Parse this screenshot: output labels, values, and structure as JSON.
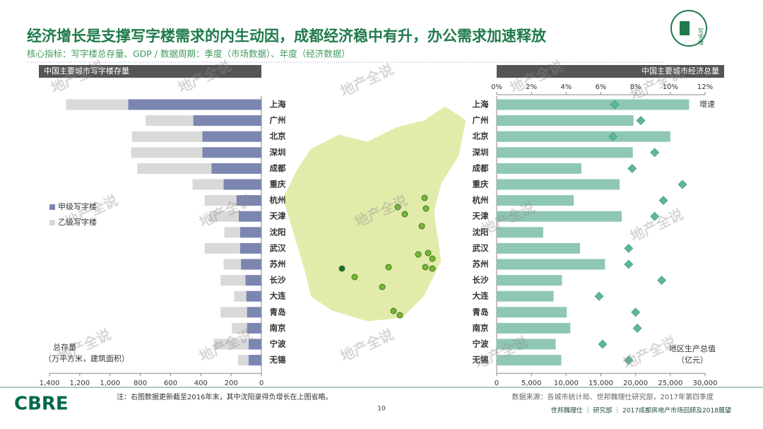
{
  "header": {
    "title": "经济增长是支撑写字楼需求的内生动因，成都经济稳中有升，办公需求加速释放",
    "subtitle": "核心指标：写字楼总存量、GDP / 数据周期：季度（市场数据）、年度（经济数据）",
    "icon_label": "写字楼"
  },
  "chart_data": [
    {
      "type": "bar",
      "orientation": "horizontal",
      "stacked": true,
      "title": "中国主要城市写字楼存量",
      "categories": [
        "上海",
        "广州",
        "北京",
        "深圳",
        "成都",
        "重庆",
        "杭州",
        "天津",
        "沈阳",
        "武汉",
        "苏州",
        "长沙",
        "大连",
        "青岛",
        "南京",
        "宁波",
        "无锡"
      ],
      "series": [
        {
          "name": "甲级写字楼",
          "color": "#7b86b1",
          "values": [
            880,
            450,
            390,
            390,
            330,
            250,
            165,
            150,
            140,
            140,
            135,
            105,
            100,
            95,
            95,
            85,
            85
          ]
        },
        {
          "name": "乙级写字楼",
          "color": "#d9d9d9",
          "values": [
            410,
            315,
            465,
            470,
            490,
            205,
            210,
            195,
            105,
            235,
            115,
            165,
            80,
            175,
            100,
            230,
            70
          ]
        }
      ],
      "xlim": [
        1400,
        0
      ],
      "xticks": [
        {
          "value": 1400,
          "label": "1,400"
        },
        {
          "value": 1200,
          "label": "1,200"
        },
        {
          "value": 1000,
          "label": "1,000"
        },
        800,
        600,
        400,
        200,
        0
      ],
      "xlabel": [
        "总存量",
        "（万平方米，建筑面积）"
      ],
      "legend": "left"
    },
    {
      "type": "bar",
      "orientation": "horizontal",
      "title": "中国主要城市经济总量",
      "categories": [
        "上海",
        "广州",
        "北京",
        "深圳",
        "成都",
        "重庆",
        "杭州",
        "天津",
        "沈阳",
        "武汉",
        "苏州",
        "长沙",
        "大连",
        "青岛",
        "南京",
        "宁波",
        "无锡"
      ],
      "series": [
        {
          "color": "#8fc8b2",
          "values": [
            27700,
            19700,
            25000,
            19600,
            12200,
            17700,
            11100,
            18000,
            6700,
            12000,
            15600,
            9400,
            8200,
            10100,
            10600,
            8500,
            9300
          ]
        },
        {
          "name": "增速",
          "type": "scatter",
          "axis": "x2",
          "color": "#5cb896",
          "values": [
            6.8,
            8.3,
            6.7,
            9.1,
            7.8,
            10.7,
            9.6,
            9.1,
            null,
            7.6,
            7.6,
            9.5,
            5.9,
            8.0,
            8.1,
            6.1,
            7.6
          ]
        }
      ],
      "xlim": [
        0,
        30000
      ],
      "xticks": [
        0,
        {
          "value": 5000,
          "label": "5,000"
        },
        {
          "value": 10000,
          "label": "10,000"
        },
        {
          "value": 15000,
          "label": "15,000"
        },
        {
          "value": 20000,
          "label": "20,000"
        },
        {
          "value": 25000,
          "label": "25,000"
        },
        {
          "value": 30000,
          "label": "30,000"
        }
      ],
      "x2lim": [
        0,
        12
      ],
      "x2ticks": [
        {
          "value": 0,
          "label": "0%"
        },
        {
          "value": 2,
          "label": "2%"
        },
        {
          "value": 4,
          "label": "4%"
        },
        {
          "value": 6,
          "label": "6%"
        },
        {
          "value": 8,
          "label": "8%"
        },
        {
          "value": 10,
          "label": "10%"
        },
        {
          "value": 12,
          "label": "12%"
        }
      ],
      "xlabel": [
        "地区生产总值",
        "（亿元）"
      ],
      "legend": "top-right"
    }
  ],
  "footer": {
    "note": "注：右图数据更新截至2016年末，其中沈阳录得负增长在上图省略。",
    "source": "数据来源：各城市统计局、世邦魏理仕研究部，2017年第四季度",
    "page": "10",
    "logo": "CBRE",
    "credit": "世邦魏理仕 ｜ 研究部 ｜ 2017成都房地产市场回顾及2018展望"
  },
  "watermark": "地产全说"
}
